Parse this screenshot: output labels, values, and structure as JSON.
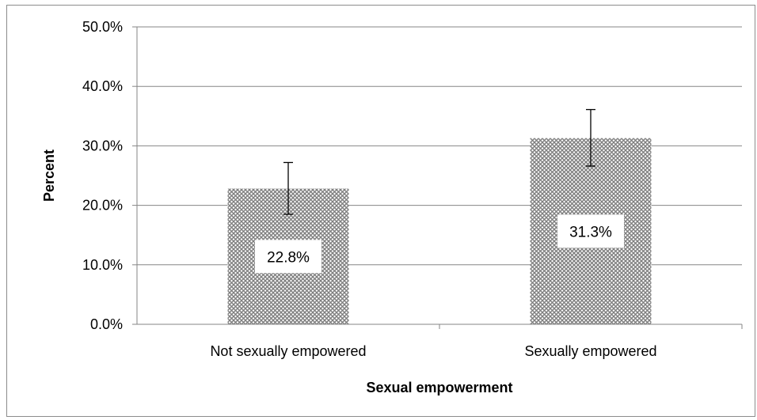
{
  "chart_data": {
    "type": "bar",
    "title": "",
    "xlabel": "Sexual empowerment",
    "ylabel": "Percent",
    "categories": [
      "Not sexually empowered",
      "Sexually empowered"
    ],
    "values": [
      22.8,
      31.3
    ],
    "data_labels": [
      "22.8%",
      "31.3%"
    ],
    "error_bars": [
      {
        "low": 18.5,
        "high": 27.2
      },
      {
        "low": 26.6,
        "high": 36.1
      }
    ],
    "ylim": [
      0,
      50
    ],
    "yticks": [
      0,
      10,
      20,
      30,
      40,
      50
    ],
    "ytick_labels": [
      "0.0%",
      "10.0%",
      "20.0%",
      "30.0%",
      "40.0%",
      "50.0%"
    ],
    "grid": true,
    "legend": "none",
    "bar_fill": "crosshatch pattern",
    "bar_color": "#7f7f7f",
    "gridline_color": "#868686"
  }
}
